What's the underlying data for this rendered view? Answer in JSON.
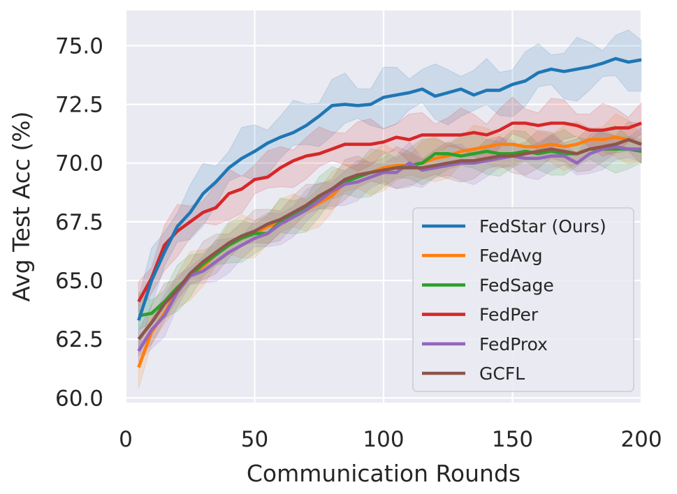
{
  "chart_data": {
    "type": "line",
    "title": "",
    "xlabel": "Communication Rounds",
    "ylabel": "Avg Test Acc (%)",
    "xlim": [
      0,
      200
    ],
    "ylim": [
      59.8,
      76.5
    ],
    "xticks": [
      0,
      50,
      100,
      150,
      200
    ],
    "xtick_labels": [
      "0",
      "50",
      "100",
      "150",
      "200"
    ],
    "yticks": [
      60,
      62.5,
      65,
      67.5,
      70,
      72.5,
      75
    ],
    "ytick_labels": [
      "60.0",
      "62.5",
      "65.0",
      "67.5",
      "70.0",
      "72.5",
      "75.0"
    ],
    "grid": true,
    "legend_position": "lower-right",
    "x": [
      5,
      10,
      15,
      20,
      25,
      30,
      35,
      40,
      45,
      50,
      55,
      60,
      65,
      70,
      75,
      80,
      85,
      90,
      95,
      100,
      105,
      110,
      115,
      120,
      125,
      130,
      135,
      140,
      145,
      150,
      155,
      160,
      165,
      170,
      175,
      180,
      185,
      190,
      195,
      200
    ],
    "series": [
      {
        "name": "FedStar (Ours)",
        "color": "#1f77b4",
        "band": 1.2,
        "values": [
          63.3,
          65.0,
          66.2,
          67.3,
          67.9,
          68.7,
          69.2,
          69.8,
          70.2,
          70.5,
          70.85,
          71.1,
          71.3,
          71.6,
          72.0,
          72.45,
          72.5,
          72.45,
          72.5,
          72.8,
          72.9,
          73.0,
          73.15,
          72.85,
          73.0,
          73.15,
          72.9,
          73.1,
          73.1,
          73.35,
          73.5,
          73.85,
          74.0,
          73.9,
          74.0,
          74.1,
          74.25,
          74.45,
          74.3,
          74.4
        ]
      },
      {
        "name": "FedAvg",
        "color": "#ff7f0e",
        "band": 0.9,
        "values": [
          61.3,
          62.8,
          63.6,
          64.6,
          65.2,
          65.6,
          66.1,
          66.6,
          66.8,
          67.0,
          67.3,
          67.5,
          67.8,
          68.0,
          68.3,
          68.6,
          69.2,
          69.5,
          69.6,
          69.8,
          69.9,
          69.9,
          70.0,
          70.2,
          70.3,
          70.5,
          70.6,
          70.7,
          70.8,
          70.8,
          70.7,
          70.7,
          70.8,
          70.7,
          70.8,
          71.0,
          71.0,
          71.1,
          71.0,
          70.8
        ]
      },
      {
        "name": "FedSage",
        "color": "#2ca02c",
        "band": 0.9,
        "values": [
          63.5,
          63.6,
          64.1,
          64.7,
          65.2,
          65.7,
          66.1,
          66.5,
          66.8,
          67.0,
          67.0,
          67.5,
          67.8,
          68.1,
          68.5,
          68.9,
          69.2,
          69.4,
          69.6,
          69.7,
          69.8,
          69.9,
          70.0,
          70.4,
          70.4,
          70.3,
          70.4,
          70.5,
          70.4,
          70.4,
          70.5,
          70.4,
          70.5,
          70.4,
          70.4,
          70.6,
          70.6,
          70.6,
          70.6,
          70.5
        ]
      },
      {
        "name": "FedPer",
        "color": "#d62728",
        "band": 1.0,
        "values": [
          64.1,
          65.1,
          66.5,
          67.1,
          67.5,
          67.9,
          68.1,
          68.7,
          68.9,
          69.3,
          69.4,
          69.8,
          70.1,
          70.3,
          70.4,
          70.6,
          70.8,
          70.8,
          70.8,
          70.9,
          71.1,
          71.0,
          71.2,
          71.2,
          71.2,
          71.2,
          71.3,
          71.2,
          71.4,
          71.7,
          71.7,
          71.6,
          71.7,
          71.7,
          71.6,
          71.4,
          71.4,
          71.5,
          71.5,
          71.7
        ]
      },
      {
        "name": "FedProx",
        "color": "#9467bd",
        "band": 0.8,
        "values": [
          62.0,
          62.9,
          63.5,
          64.5,
          65.2,
          65.4,
          65.8,
          66.2,
          66.5,
          66.8,
          67.0,
          67.4,
          67.7,
          68.0,
          68.4,
          68.8,
          69.1,
          69.2,
          69.4,
          69.6,
          69.6,
          70.0,
          69.7,
          69.8,
          69.9,
          70.0,
          70.0,
          70.1,
          70.2,
          70.3,
          70.2,
          70.2,
          70.3,
          70.3,
          70.0,
          70.4,
          70.6,
          70.7,
          70.6,
          70.6
        ]
      },
      {
        "name": "GCFL",
        "color": "#8c564b",
        "band": 0.8,
        "values": [
          62.5,
          63.2,
          64.0,
          64.6,
          65.3,
          65.8,
          66.2,
          66.6,
          66.9,
          67.1,
          67.4,
          67.6,
          67.9,
          68.2,
          68.6,
          68.9,
          69.3,
          69.5,
          69.6,
          69.7,
          69.8,
          69.8,
          69.8,
          69.9,
          70.0,
          70.1,
          70.1,
          70.2,
          70.3,
          70.3,
          70.4,
          70.5,
          70.6,
          70.5,
          70.4,
          70.6,
          70.7,
          70.8,
          71.0,
          70.8
        ]
      }
    ]
  }
}
